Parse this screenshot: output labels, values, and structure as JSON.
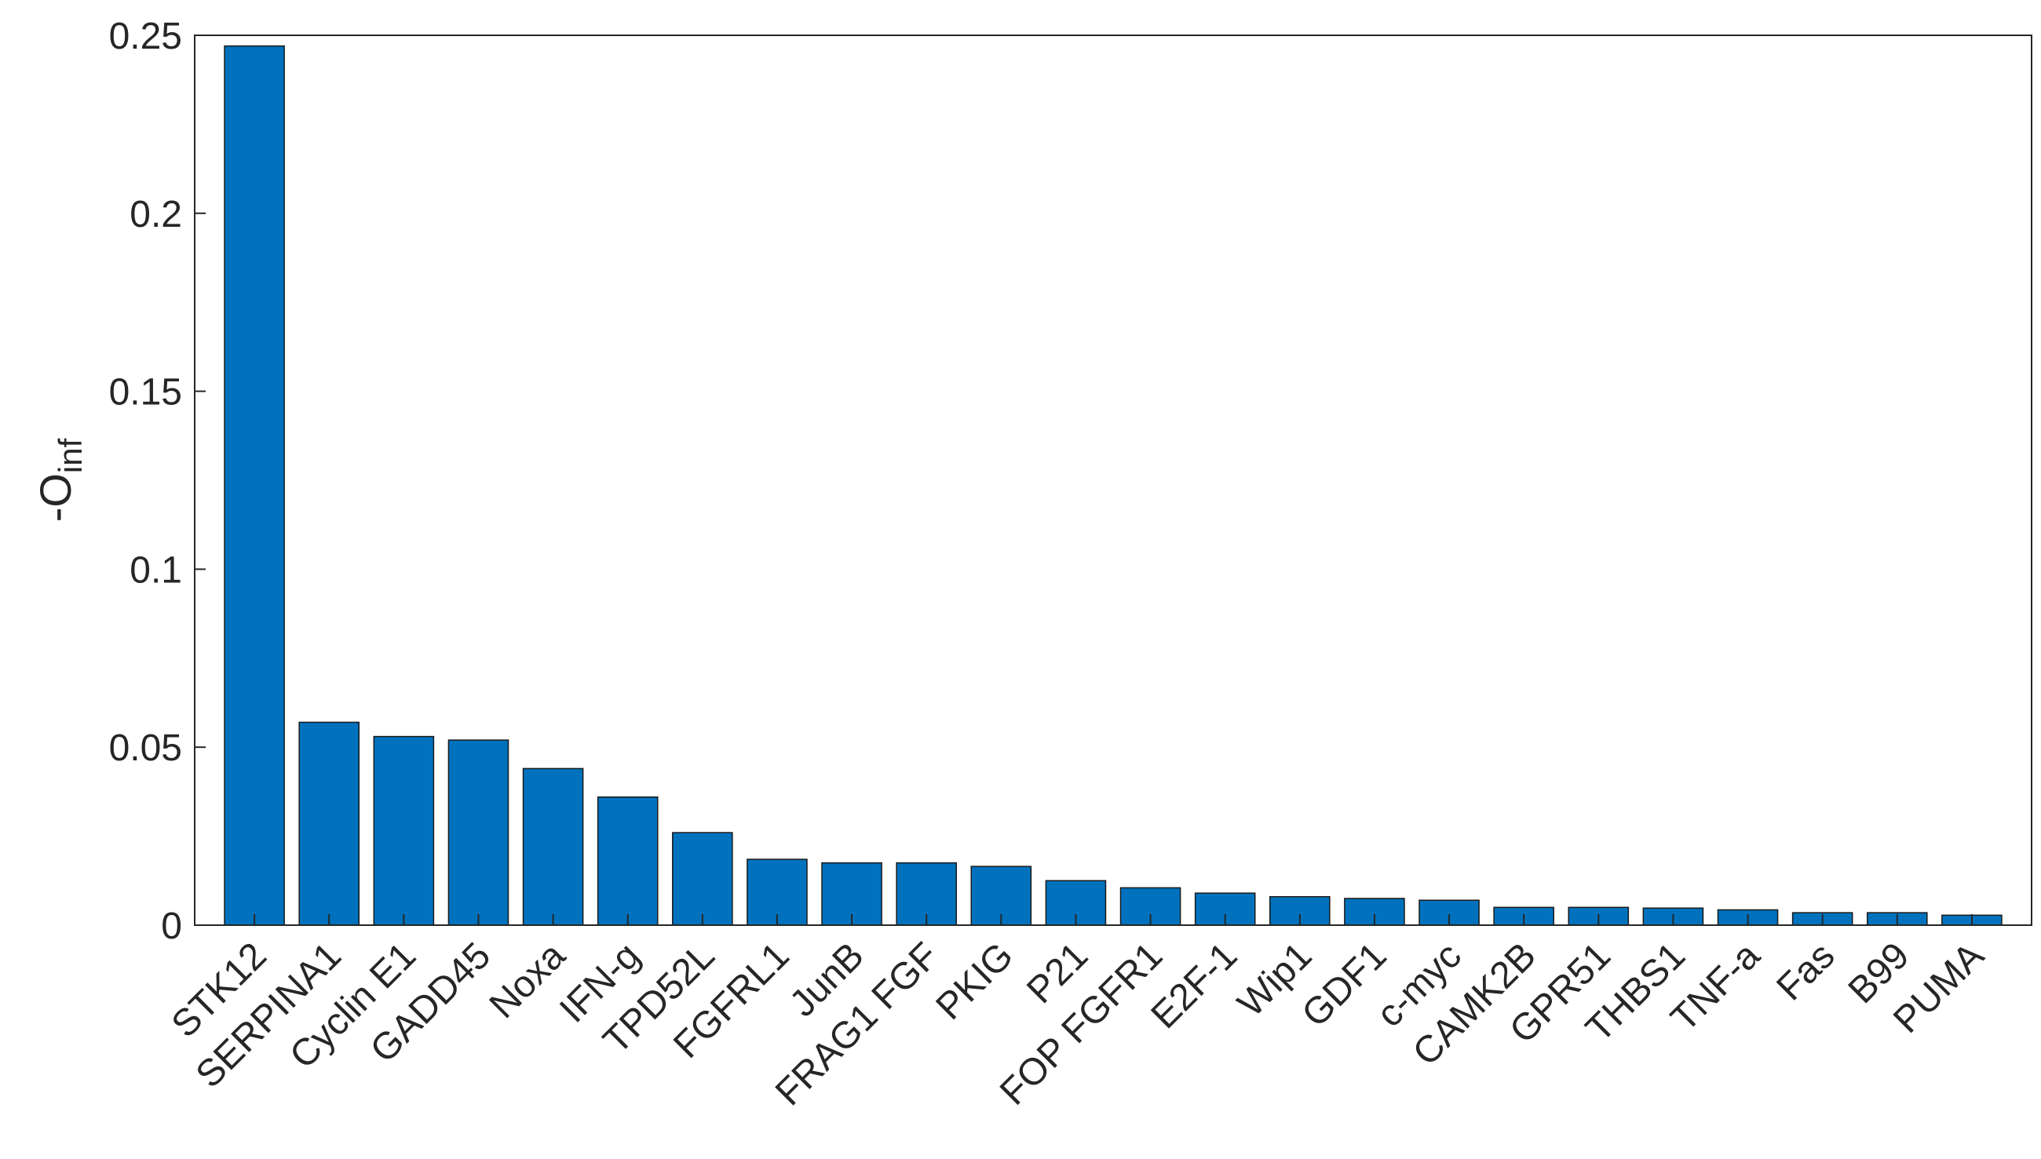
{
  "chart_data": {
    "type": "bar",
    "title": "",
    "xlabel": "",
    "ylabel": "-O",
    "ylabel_subscript": "inf",
    "ylim": [
      0,
      0.25
    ],
    "yticks": [
      "0",
      "0.05",
      "0.1",
      "0.15",
      "0.2",
      "0.25"
    ],
    "ytick_values": [
      0,
      0.05,
      0.1,
      0.15,
      0.2,
      0.25
    ],
    "bar_color": "#0072BD",
    "grid": false,
    "categories": [
      "STK12",
      "SERPINA1",
      "Cyclin E1",
      "GADD45",
      "Noxa",
      "IFN-g",
      "TPD52L",
      "FGFRL1",
      "JunB",
      "FRAG1 FGF",
      "PKIG",
      "P21",
      "FOP FGFR1",
      "E2F-1",
      "Wip1",
      "GDF1",
      "c-myc",
      "CAMK2B",
      "GPR51",
      "THBS1",
      "TNF-a",
      "Fas",
      "B99",
      "PUMA"
    ],
    "values": [
      0.247,
      0.057,
      0.053,
      0.052,
      0.044,
      0.036,
      0.026,
      0.0185,
      0.0175,
      0.0175,
      0.0165,
      0.0125,
      0.0105,
      0.009,
      0.008,
      0.0075,
      0.007,
      0.005,
      0.005,
      0.0048,
      0.0043,
      0.0035,
      0.0035,
      0.0028
    ]
  }
}
